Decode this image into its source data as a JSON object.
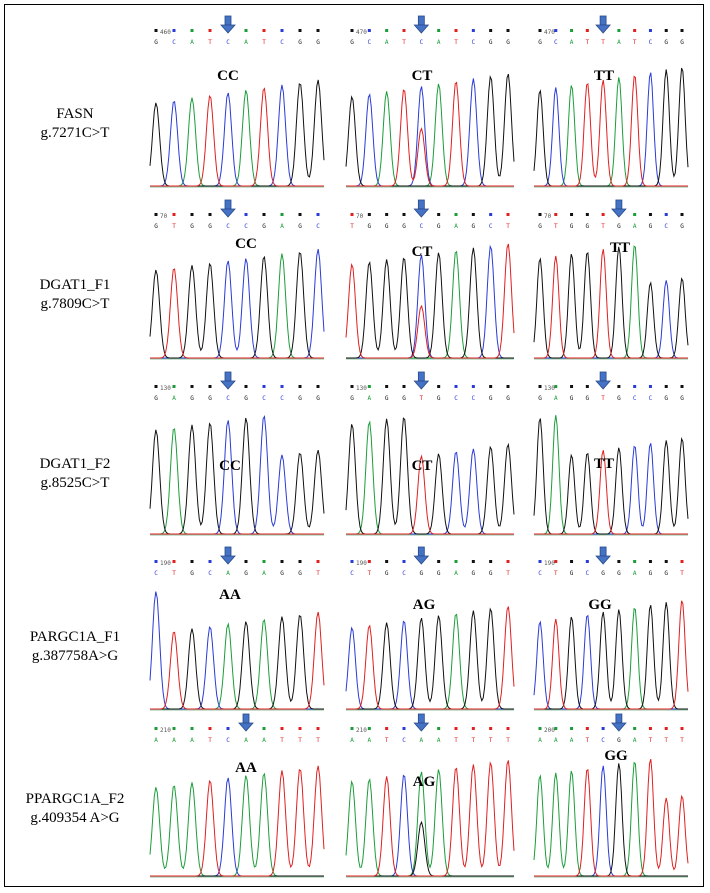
{
  "colors": {
    "A": "#1b9e3a",
    "C": "#2a3bd6",
    "G": "#111111",
    "T": "#e02020",
    "arrow_fill": "#4472c4",
    "arrow_stroke": "#2a4a8a",
    "baseline": "#8fbf9f"
  },
  "rows": [
    {
      "gene": "FASN",
      "variant": "g.7271C>T",
      "panels": [
        {
          "genotype": "CC",
          "pos_label": "460",
          "bases": [
            "G",
            "C",
            "A",
            "T",
            "C",
            "A",
            "T",
            "C",
            "G",
            "G"
          ],
          "snp_index": 4
        },
        {
          "genotype": "CT",
          "pos_label": "470",
          "bases": [
            "G",
            "C",
            "A",
            "T",
            "C",
            "A",
            "T",
            "C",
            "G",
            "G"
          ],
          "snp_index": 4
        },
        {
          "genotype": "TT",
          "pos_label": "470",
          "bases": [
            "G",
            "C",
            "A",
            "T",
            "T",
            "A",
            "T",
            "C",
            "G",
            "G"
          ],
          "snp_index": 4
        }
      ]
    },
    {
      "gene": "DGAT1_F1",
      "variant": "g.7809C>T",
      "panels": [
        {
          "genotype": "CC",
          "pos_label": "70",
          "bases": [
            "G",
            "T",
            "G",
            "G",
            "C",
            "C",
            "G",
            "A",
            "G",
            "C"
          ],
          "snp_index": 4
        },
        {
          "genotype": "CT",
          "pos_label": "70",
          "bases": [
            "T",
            "G",
            "G",
            "G",
            "C",
            "G",
            "A",
            "G",
            "C",
            "T"
          ],
          "snp_index": 4
        },
        {
          "genotype": "TT",
          "pos_label": "70",
          "bases": [
            "G",
            "T",
            "G",
            "G",
            "T",
            "G",
            "A",
            "G",
            "C",
            "G"
          ],
          "snp_index": 5
        }
      ]
    },
    {
      "gene": "DGAT1_F2",
      "variant": "g.8525C>T",
      "panels": [
        {
          "genotype": "CC",
          "pos_label": "130",
          "bases": [
            "G",
            "A",
            "G",
            "G",
            "C",
            "G",
            "C",
            "C",
            "G",
            "G"
          ],
          "snp_index": 4
        },
        {
          "genotype": "CT",
          "pos_label": "130",
          "bases": [
            "G",
            "A",
            "G",
            "G",
            "T",
            "G",
            "C",
            "C",
            "G",
            "G"
          ],
          "snp_index": 4
        },
        {
          "genotype": "TT",
          "pos_label": "130",
          "bases": [
            "G",
            "A",
            "G",
            "G",
            "T",
            "G",
            "C",
            "C",
            "G",
            "G"
          ],
          "snp_index": 4
        }
      ]
    },
    {
      "gene": "PARGC1A_F1",
      "variant": "g.387758A>G",
      "panels": [
        {
          "genotype": "AA",
          "pos_label": "190",
          "bases": [
            "C",
            "T",
            "G",
            "C",
            "A",
            "G",
            "A",
            "G",
            "G",
            "T"
          ],
          "snp_index": 4
        },
        {
          "genotype": "AG",
          "pos_label": "190",
          "bases": [
            "C",
            "T",
            "G",
            "C",
            "G",
            "G",
            "A",
            "G",
            "G",
            "T"
          ],
          "snp_index": 4
        },
        {
          "genotype": "GG",
          "pos_label": "190",
          "bases": [
            "C",
            "T",
            "G",
            "C",
            "G",
            "G",
            "A",
            "G",
            "G",
            "T"
          ],
          "snp_index": 4
        }
      ]
    },
    {
      "gene": "PPARGC1A_F2",
      "variant": "g.409354 A>G",
      "panels": [
        {
          "genotype": "AA",
          "pos_label": "210",
          "bases": [
            "A",
            "A",
            "A",
            "T",
            "C",
            "A",
            "A",
            "T",
            "T",
            "T"
          ],
          "snp_index": 5
        },
        {
          "genotype": "AG",
          "pos_label": "210",
          "bases": [
            "A",
            "A",
            "T",
            "C",
            "A",
            "A",
            "T",
            "T",
            "T",
            "T"
          ],
          "snp_index": 4
        },
        {
          "genotype": "GG",
          "pos_label": "200",
          "bases": [
            "A",
            "A",
            "A",
            "T",
            "C",
            "G",
            "A",
            "T",
            "T",
            "T"
          ],
          "snp_index": 5
        }
      ]
    }
  ]
}
